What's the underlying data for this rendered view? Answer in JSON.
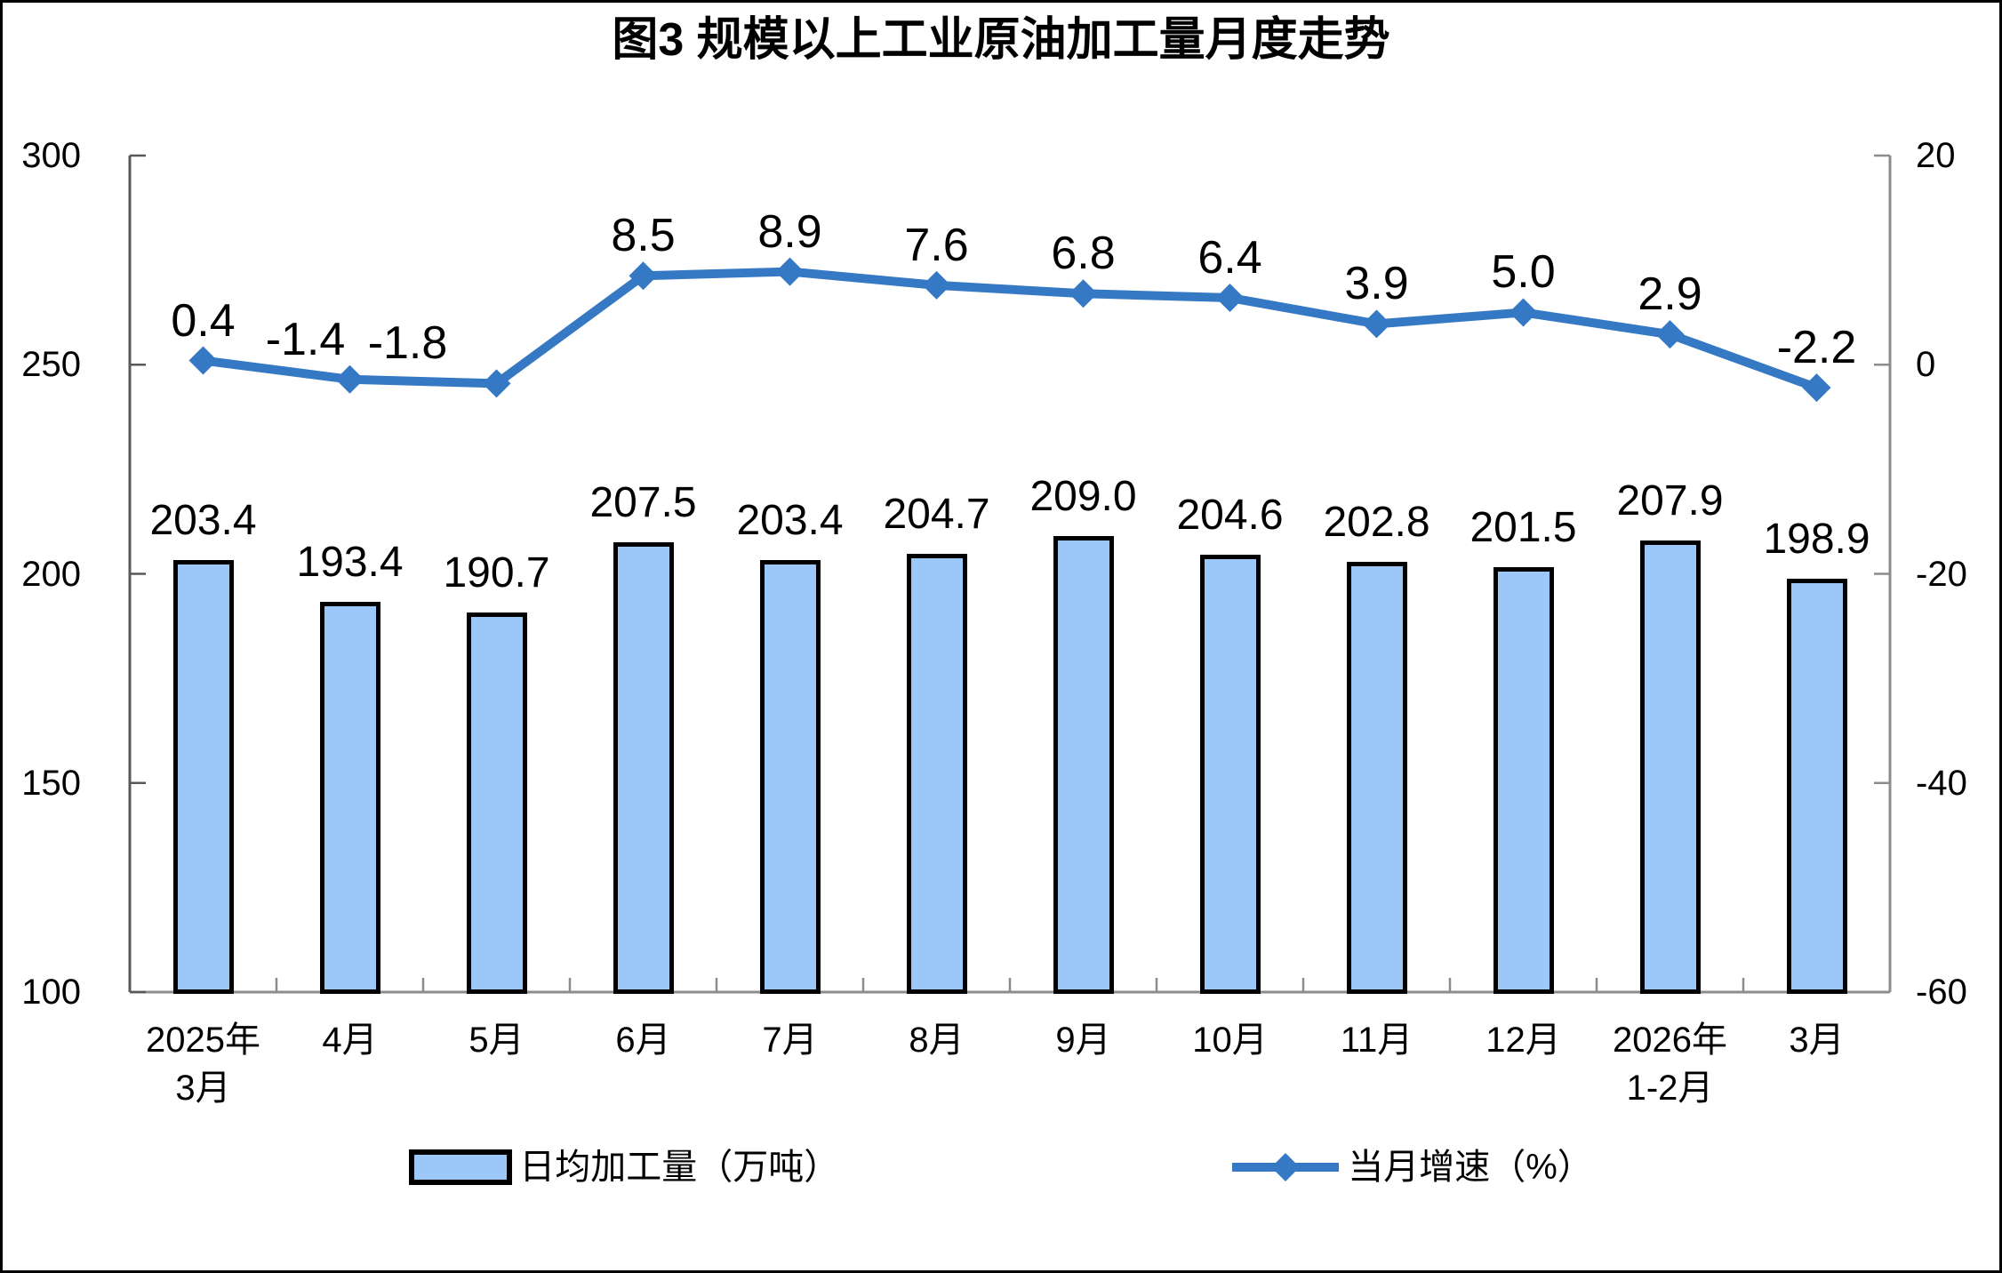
{
  "title": "图3  规模以上工业原油加工量月度走势",
  "chart_data": {
    "type": "bar+line",
    "title": "图3  规模以上工业原油加工量月度走势",
    "categories": [
      "2025年\n3月",
      "4月",
      "5月",
      "6月",
      "7月",
      "8月",
      "9月",
      "10月",
      "11月",
      "12月",
      "2026年\n1-2月",
      "3月"
    ],
    "series": [
      {
        "name": "日均加工量（万吨）",
        "type": "bar",
        "axis": "left",
        "values": [
          203.4,
          193.4,
          190.7,
          207.5,
          203.4,
          204.7,
          209.0,
          204.6,
          202.8,
          201.5,
          207.9,
          198.9
        ],
        "labels": [
          "203.4",
          "193.4",
          "190.7",
          "207.5",
          "203.4",
          "204.7",
          "209.0",
          "204.6",
          "202.8",
          "201.5",
          "207.9",
          "198.9"
        ],
        "fill_color": "#9BC8F8",
        "border_color": "#000000"
      },
      {
        "name": "当月增速（%）",
        "type": "line",
        "axis": "right",
        "values": [
          0.4,
          -1.4,
          -1.8,
          8.5,
          8.9,
          7.6,
          6.8,
          6.4,
          3.9,
          5.0,
          2.9,
          -2.2
        ],
        "labels": [
          "0.4",
          "-1.4",
          "-1.8",
          "8.5",
          "8.9",
          "7.6",
          "6.8",
          "6.4",
          "3.9",
          "5.0",
          "2.9",
          "-2.2"
        ],
        "color": "#3579C4",
        "marker": "diamond"
      }
    ],
    "left_axis": {
      "min": 100,
      "max": 300,
      "ticks": [
        100,
        150,
        200,
        250,
        300
      ],
      "tick_labels": [
        "100",
        "150",
        "200",
        "250",
        "300"
      ]
    },
    "right_axis": {
      "min": -60,
      "max": 20,
      "ticks": [
        -60,
        -40,
        -20,
        0,
        20
      ],
      "tick_labels": [
        "-60",
        "-40",
        "-20",
        "0",
        "20"
      ]
    },
    "gridlines": false,
    "data_labels": true,
    "legend_position": "bottom"
  },
  "legend": {
    "items": [
      {
        "label": "日均加工量（万吨）",
        "swatch": "bar"
      },
      {
        "label": "当月增速（%）",
        "swatch": "line"
      }
    ]
  }
}
